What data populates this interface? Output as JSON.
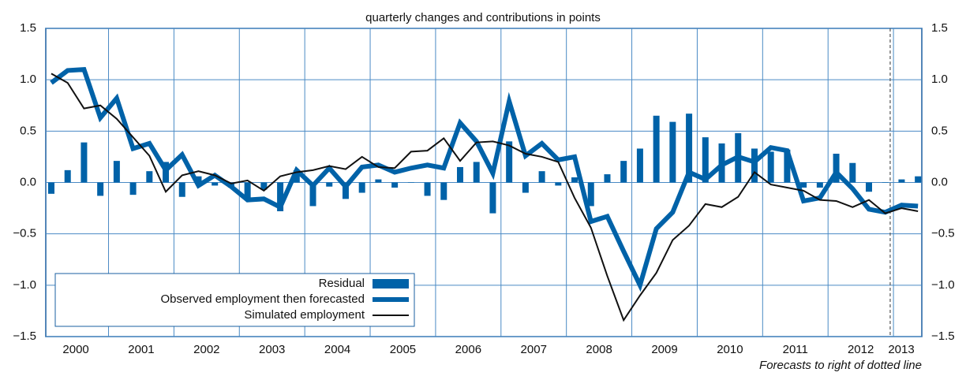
{
  "chart_data": {
    "type": "bar-line",
    "title": "quarterly changes and contributions in points",
    "annotation": "Forecasts to right of dotted line",
    "categories": [
      "2000",
      null,
      null,
      null,
      "2001",
      null,
      null,
      null,
      "2002",
      null,
      null,
      null,
      "2003",
      null,
      null,
      null,
      "2004",
      null,
      null,
      null,
      "2005",
      null,
      null,
      null,
      "2006",
      null,
      null,
      null,
      "2007",
      null,
      null,
      null,
      "2008",
      null,
      null,
      null,
      "2009",
      null,
      null,
      null,
      "2010",
      null,
      null,
      null,
      "2011",
      null,
      null,
      null,
      "2012",
      null,
      null,
      null,
      "2013",
      null
    ],
    "series": [
      {
        "name": "Residual",
        "kind": "bar",
        "color": "#0062a8",
        "values": [
          -0.11,
          0.12,
          0.39,
          -0.13,
          0.21,
          -0.12,
          0.11,
          0.2,
          -0.14,
          0.06,
          -0.03,
          -0.05,
          -0.16,
          -0.07,
          -0.28,
          0.12,
          -0.23,
          -0.04,
          -0.16,
          -0.1,
          0.03,
          -0.05,
          0.0,
          -0.13,
          -0.17,
          0.15,
          0.2,
          -0.3,
          0.4,
          -0.1,
          0.11,
          -0.03,
          0.05,
          -0.23,
          0.08,
          0.21,
          0.33,
          0.65,
          0.59,
          0.67,
          0.44,
          0.38,
          0.48,
          0.33,
          0.3,
          0.32,
          -0.05,
          -0.05,
          0.28,
          0.19,
          -0.09,
          0.0,
          0.03,
          0.06
        ]
      },
      {
        "name": "Observed employment then forecasted",
        "kind": "line",
        "color": "#0062a8",
        "values": [
          0.97,
          1.09,
          1.1,
          0.63,
          0.82,
          0.33,
          0.38,
          0.12,
          0.27,
          -0.03,
          0.07,
          -0.04,
          -0.17,
          -0.16,
          -0.24,
          0.12,
          -0.03,
          0.14,
          -0.04,
          0.15,
          0.17,
          0.1,
          0.14,
          0.17,
          0.14,
          0.58,
          0.4,
          0.09,
          0.79,
          0.26,
          0.38,
          0.22,
          0.25,
          -0.38,
          -0.33,
          -0.67,
          -1.0,
          -0.45,
          -0.29,
          0.1,
          0.03,
          0.17,
          0.25,
          0.2,
          0.34,
          0.31,
          -0.18,
          -0.15,
          0.1,
          -0.06,
          -0.26,
          -0.29,
          -0.22,
          -0.23
        ]
      },
      {
        "name": "Simulated employment",
        "kind": "line",
        "color": "#111111",
        "values": [
          1.06,
          0.97,
          0.72,
          0.75,
          0.62,
          0.44,
          0.26,
          -0.09,
          0.07,
          0.11,
          0.07,
          -0.01,
          0.02,
          -0.08,
          0.06,
          0.1,
          0.12,
          0.16,
          0.13,
          0.25,
          0.15,
          0.14,
          0.3,
          0.31,
          0.43,
          0.21,
          0.39,
          0.4,
          0.36,
          0.28,
          0.25,
          0.2,
          -0.15,
          -0.44,
          -0.91,
          -1.34,
          -1.1,
          -0.88,
          -0.56,
          -0.42,
          -0.21,
          -0.24,
          -0.14,
          0.1,
          -0.02,
          -0.05,
          -0.08,
          -0.17,
          -0.18,
          -0.24,
          -0.17,
          -0.3,
          -0.25,
          -0.28
        ]
      }
    ],
    "ylim": [
      -1.5,
      1.5
    ],
    "yticks": [
      {
        "value": -1.5,
        "label": "−1.5"
      },
      {
        "value": -1,
        "label": "−1.0"
      },
      {
        "value": -0.5,
        "label": "−0.5"
      },
      {
        "value": 0,
        "label": "0.0"
      },
      0.5,
      {
        "value": 1,
        "label": "1.0"
      },
      1.5
    ],
    "forecast_marker": 51.3,
    "grid": true,
    "legend": "lower left"
  }
}
